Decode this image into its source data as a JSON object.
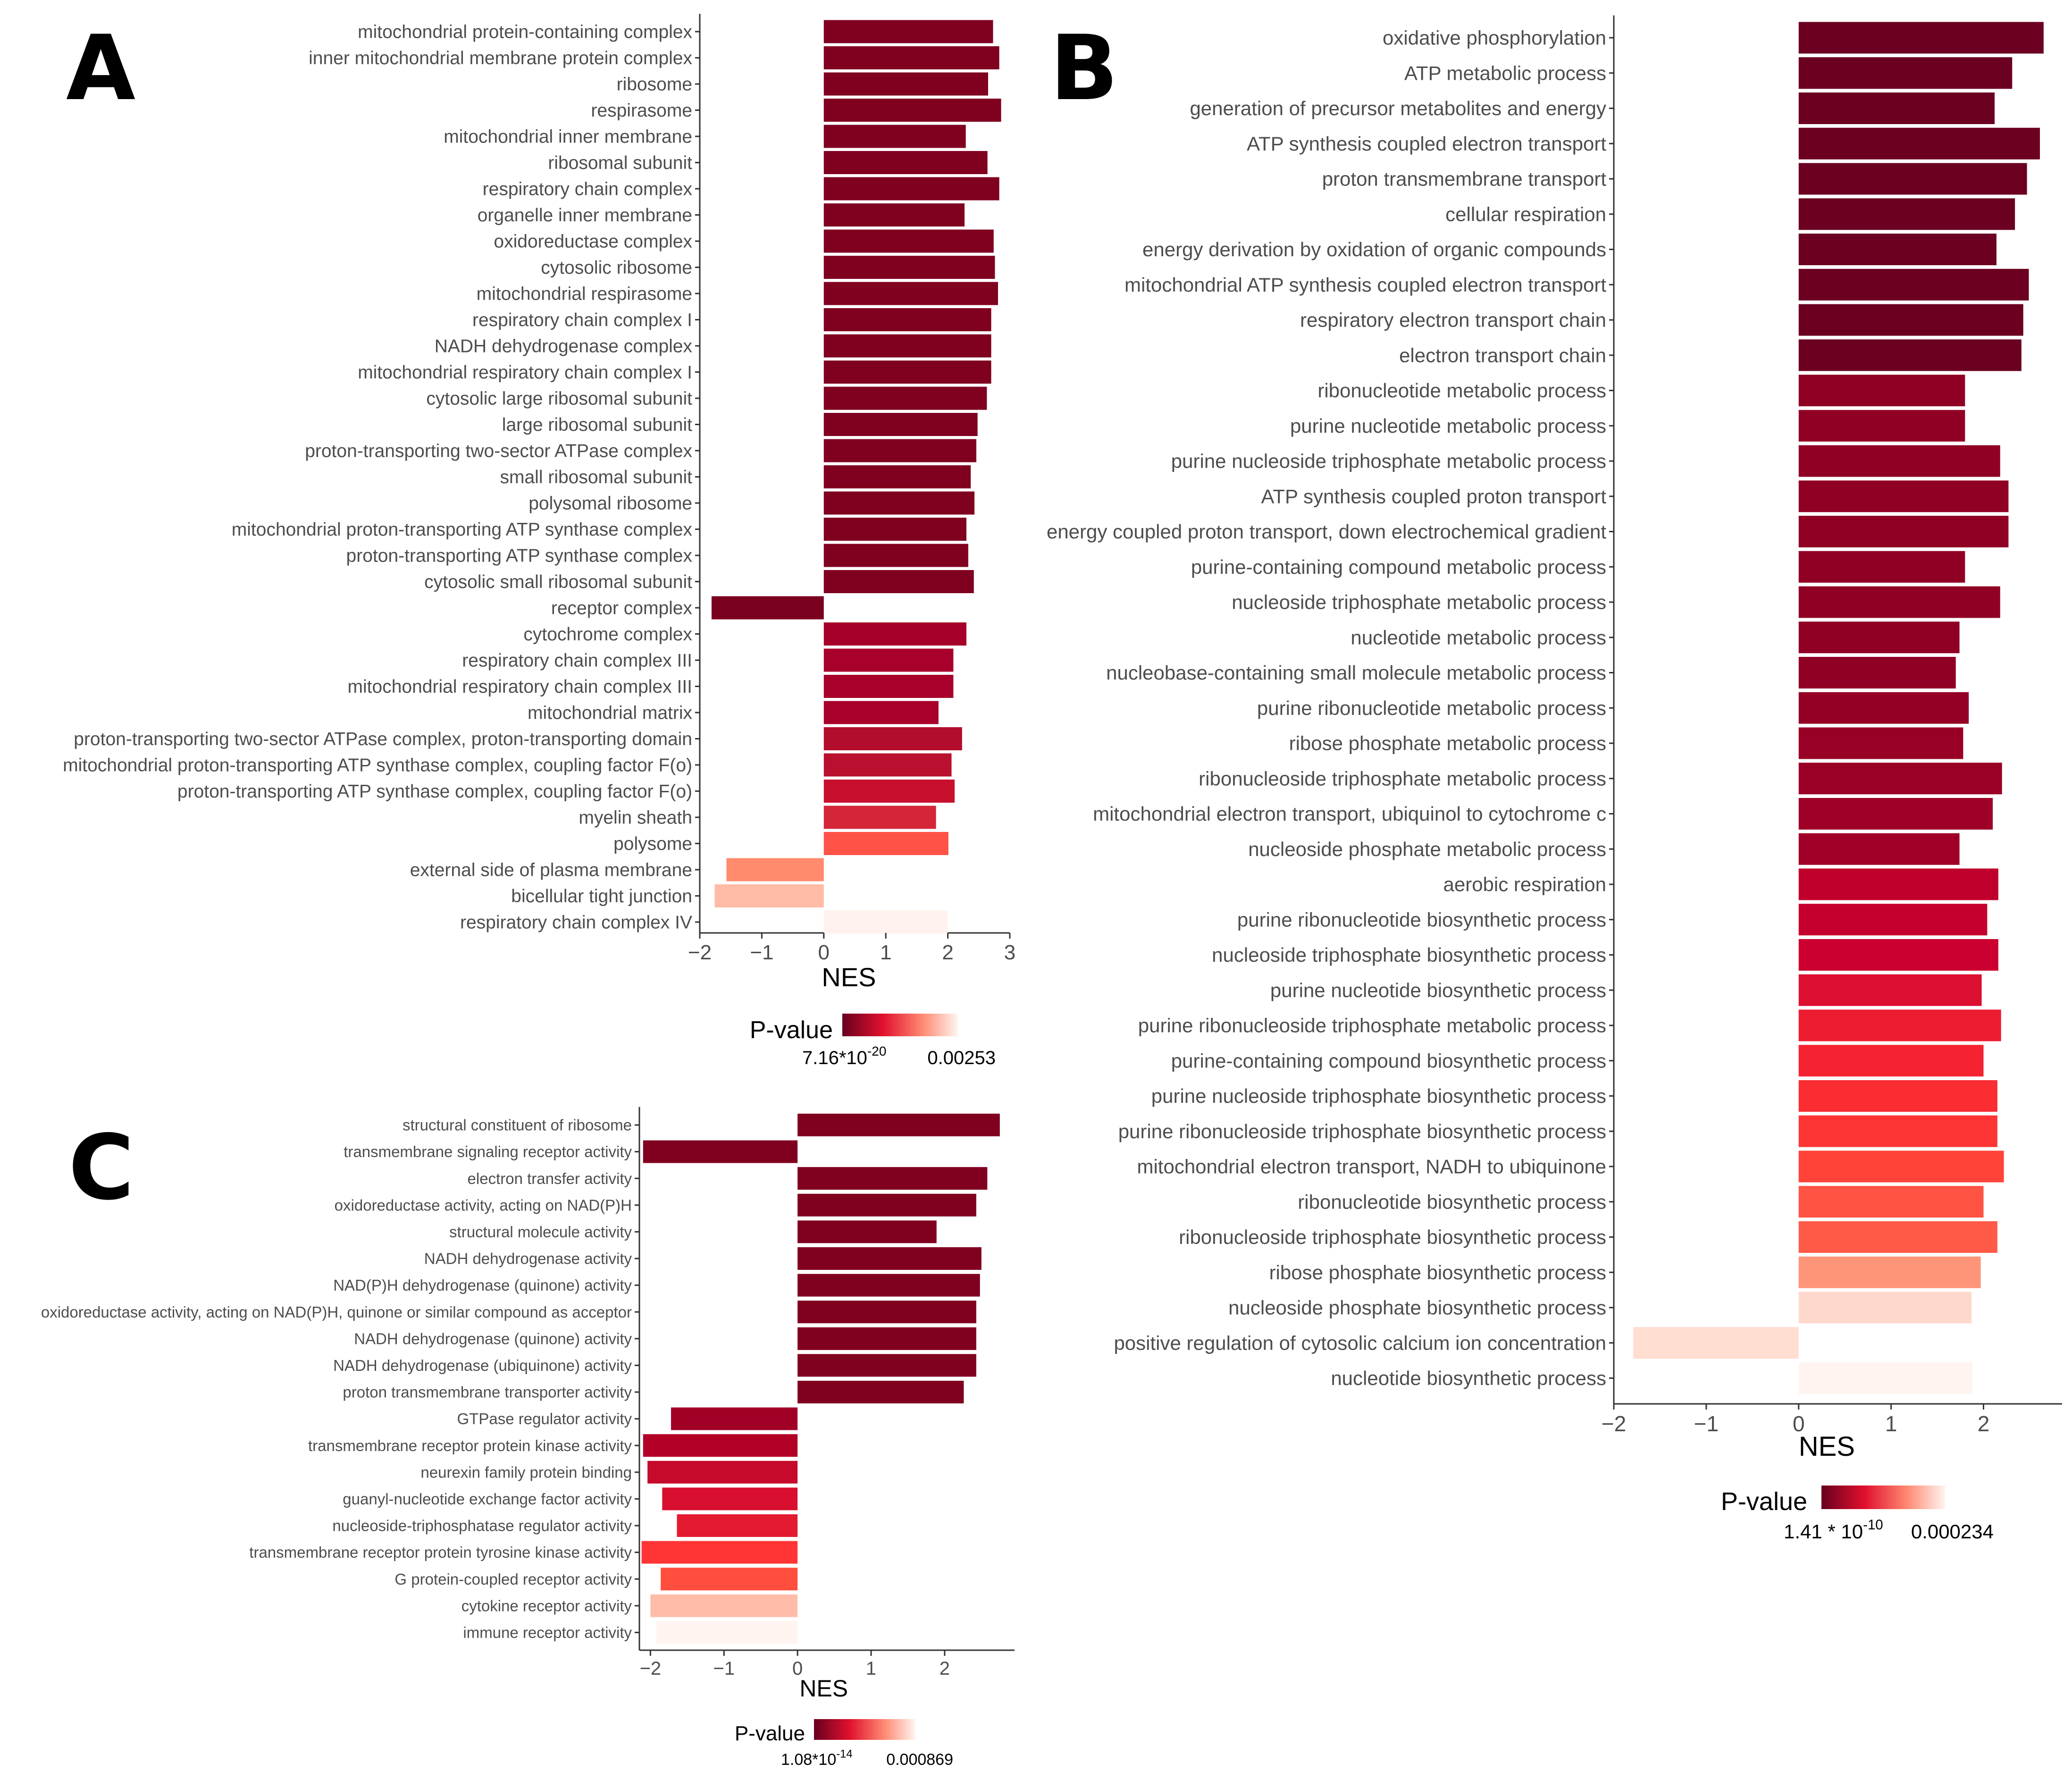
{
  "chart_data": [
    {
      "panel": "A",
      "type": "bar",
      "orientation": "horizontal",
      "xlabel": "NES",
      "xlim": [
        -2,
        3
      ],
      "xticks": [
        -2,
        -1,
        0,
        1,
        2,
        3
      ],
      "legend": {
        "title": "P-value",
        "min_label": "7.16*10",
        "min_exp": "-20",
        "max_label": "0.00253",
        "low_color": "#67001f",
        "high_color": "#fff5f0"
      },
      "categories": [
        "mitochondrial protein-containing complex",
        "inner mitochondrial membrane protein complex",
        "ribosome",
        "respirasome",
        "mitochondrial inner membrane",
        "ribosomal subunit",
        "respiratory chain complex",
        "organelle inner membrane",
        "oxidoreductase complex",
        "cytosolic ribosome",
        "mitochondrial respirasome",
        "respiratory chain complex I",
        "NADH dehydrogenase complex",
        "mitochondrial respiratory chain complex I",
        "cytosolic large ribosomal subunit",
        "large ribosomal subunit",
        "proton-transporting two-sector ATPase complex",
        "small ribosomal subunit",
        "polysomal ribosome",
        "mitochondrial proton-transporting ATP synthase complex",
        "proton-transporting ATP synthase complex",
        "cytosolic small ribosomal subunit",
        "receptor complex",
        "cytochrome complex",
        "respiratory chain complex III",
        "mitochondrial respiratory chain complex III",
        "mitochondrial matrix",
        "proton-transporting two-sector ATPase complex, proton-transporting domain",
        "mitochondrial proton-transporting ATP synthase complex, coupling factor F(o)",
        "proton-transporting ATP synthase complex, coupling factor F(o)",
        "myelin sheath",
        "polysome",
        "external side of plasma membrane",
        "bicellular tight junction",
        "respiratory chain complex IV"
      ],
      "values": [
        2.73,
        2.83,
        2.65,
        2.86,
        2.29,
        2.64,
        2.83,
        2.27,
        2.74,
        2.76,
        2.81,
        2.7,
        2.7,
        2.7,
        2.63,
        2.48,
        2.46,
        2.37,
        2.43,
        2.3,
        2.33,
        2.42,
        -1.81,
        2.3,
        2.09,
        2.09,
        1.85,
        2.23,
        2.06,
        2.11,
        1.81,
        2.01,
        -1.57,
        -1.76,
        2.0
      ],
      "colors": [
        "#800020",
        "#800020",
        "#800020",
        "#800020",
        "#800020",
        "#800020",
        "#800020",
        "#800020",
        "#800020",
        "#800020",
        "#800020",
        "#800020",
        "#800020",
        "#800020",
        "#800020",
        "#800020",
        "#800020",
        "#800020",
        "#800020",
        "#800020",
        "#800020",
        "#800020",
        "#7a0020",
        "#a6002a",
        "#a8002b",
        "#a8002b",
        "#a8002b",
        "#b20d2c",
        "#b8102e",
        "#c8102e",
        "#d42638",
        "#ff5348",
        "#ff8a6c",
        "#ffbba6",
        "#fff2ee"
      ]
    },
    {
      "panel": "B",
      "type": "bar",
      "orientation": "horizontal",
      "xlabel": "NES",
      "xlim": [
        -2,
        2.85
      ],
      "xticks": [
        -2,
        -1,
        0,
        1,
        2
      ],
      "legend": {
        "title": "P-value",
        "min_label": "1.41 * 10",
        "min_exp": "-10",
        "max_label": "0.000234",
        "low_color": "#67001f",
        "high_color": "#fff5f0"
      },
      "categories": [
        "oxidative phosphorylation",
        "ATP metabolic process",
        "generation of precursor metabolites and energy",
        "ATP synthesis coupled electron transport",
        "proton transmembrane transport",
        "cellular respiration",
        "energy derivation by oxidation of organic compounds",
        "mitochondrial ATP synthesis coupled electron transport",
        "respiratory electron transport chain",
        "electron transport chain",
        "ribonucleotide metabolic process",
        "purine nucleotide metabolic process",
        "purine nucleoside triphosphate metabolic process",
        "ATP synthesis coupled proton transport",
        "energy coupled proton transport, down electrochemical gradient",
        "purine-containing compound metabolic process",
        "nucleoside triphosphate metabolic process",
        "nucleotide metabolic process",
        "nucleobase-containing small molecule metabolic process",
        "purine ribonucleotide metabolic process",
        "ribose phosphate metabolic process",
        "ribonucleoside triphosphate metabolic process",
        "mitochondrial electron transport, ubiquinol to cytochrome c",
        "nucleoside phosphate metabolic process",
        "aerobic respiration",
        "purine ribonucleotide biosynthetic process",
        "nucleoside triphosphate biosynthetic process",
        "purine nucleotide biosynthetic process",
        "purine ribonucleoside triphosphate metabolic process",
        "purine-containing compound biosynthetic process",
        "purine nucleoside triphosphate biosynthetic process",
        "purine ribonucleoside triphosphate biosynthetic process",
        "mitochondrial electron transport, NADH to ubiquinone",
        "ribonucleotide biosynthetic process",
        "ribonucleoside triphosphate biosynthetic process",
        "ribose phosphate biosynthetic process",
        "nucleoside phosphate biosynthetic process",
        "positive regulation of cytosolic calcium ion concentration",
        "nucleotide biosynthetic process"
      ],
      "values": [
        2.65,
        2.31,
        2.12,
        2.61,
        2.47,
        2.34,
        2.14,
        2.49,
        2.43,
        2.41,
        1.8,
        1.8,
        2.18,
        2.27,
        2.27,
        1.8,
        2.18,
        1.74,
        1.7,
        1.84,
        1.78,
        2.2,
        2.1,
        1.74,
        2.16,
        2.04,
        2.16,
        1.98,
        2.19,
        2.0,
        2.15,
        2.15,
        2.22,
        2.0,
        2.15,
        1.97,
        1.87,
        -1.79,
        1.88
      ],
      "colors": [
        "#6b0020",
        "#6b0020",
        "#6b0020",
        "#6b0020",
        "#6b0020",
        "#6b0020",
        "#6b0020",
        "#6b0020",
        "#6b0020",
        "#6b0020",
        "#900024",
        "#900024",
        "#900024",
        "#900024",
        "#900024",
        "#900024",
        "#900024",
        "#900024",
        "#900024",
        "#940025",
        "#990025",
        "#9a0026",
        "#9e0027",
        "#a00027",
        "#c0002c",
        "#c6002e",
        "#cc0030",
        "#dc0f30",
        "#ec1c31",
        "#f52232",
        "#fa2d33",
        "#fe3535",
        "#ff4339",
        "#ff5444",
        "#ff5a47",
        "#ff9578",
        "#ffd8cc",
        "#ffddd0",
        "#fff4f0"
      ]
    },
    {
      "panel": "C",
      "type": "bar",
      "orientation": "horizontal",
      "xlabel": "NES",
      "xlim": [
        -2.15,
        2.95
      ],
      "xticks": [
        -2,
        -1,
        0,
        1,
        2
      ],
      "legend": {
        "title": "P-value",
        "min_label": "1.08*10",
        "min_exp": "-14",
        "max_label": "0.000869",
        "low_color": "#67001f",
        "high_color": "#fff5f0"
      },
      "categories": [
        "structural constituent of ribosome",
        "transmembrane signaling receptor activity",
        "electron transfer activity",
        "oxidoreductase activity, acting on NAD(P)H",
        "structural molecule activity",
        "NADH dehydrogenase activity",
        "NAD(P)H dehydrogenase (quinone) activity",
        "oxidoreductase activity, acting on NAD(P)H, quinone or similar compound as acceptor",
        "NADH dehydrogenase (quinone) activity",
        "NADH dehydrogenase (ubiquinone) activity",
        "proton transmembrane transporter activity",
        "GTPase regulator activity",
        "transmembrane receptor protein kinase activity",
        "neurexin family protein binding",
        "guanyl-nucleotide exchange factor activity",
        "nucleoside-triphosphatase regulator activity",
        "transmembrane receptor protein tyrosine kinase activity",
        "G protein-coupled receptor activity",
        "cytokine receptor activity",
        "immune receptor activity"
      ],
      "values": [
        2.75,
        -2.1,
        2.58,
        2.43,
        1.89,
        2.5,
        2.48,
        2.43,
        2.43,
        2.43,
        2.26,
        -1.72,
        -2.1,
        -2.04,
        -1.84,
        -1.64,
        -2.12,
        -1.86,
        -2.0,
        -1.92
      ],
      "colors": [
        "#800020",
        "#800020",
        "#800020",
        "#800020",
        "#800020",
        "#800020",
        "#800020",
        "#800020",
        "#800020",
        "#800020",
        "#800020",
        "#a00026",
        "#b30027",
        "#c50a2c",
        "#d80f2f",
        "#e41a30",
        "#ff3535",
        "#ff4d3e",
        "#ffbca8",
        "#fff4f0"
      ]
    }
  ],
  "panel_labels": [
    "A",
    "B",
    "C"
  ]
}
